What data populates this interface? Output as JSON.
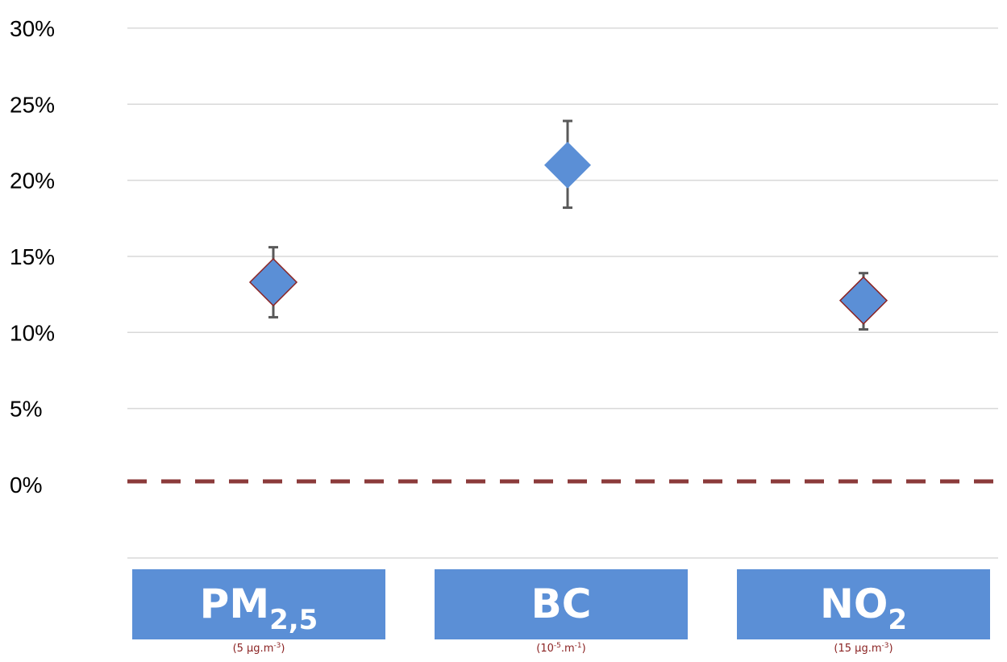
{
  "chart_data": {
    "type": "scatter",
    "y_format": "percent",
    "ylim": [
      0,
      30
    ],
    "y_ticks": [
      {
        "value": 30,
        "label": "30%"
      },
      {
        "value": 25,
        "label": "25%"
      },
      {
        "value": 20,
        "label": "20%"
      },
      {
        "value": 15,
        "label": "15%"
      },
      {
        "value": 10,
        "label": "10%"
      },
      {
        "value": 5,
        "label": "5%"
      },
      {
        "value": 0,
        "label": "0%"
      }
    ],
    "grid": true,
    "reference_line": {
      "value": 0,
      "style": "dashed",
      "color": "#8b3a3a"
    },
    "categories": [
      {
        "name_main": "PM",
        "name_sub": "2,5",
        "unit_main": "(5 µg.m",
        "unit_sup": "-3",
        "unit_end": ")"
      },
      {
        "name_main": "BC",
        "name_sub": "",
        "unit_main": "(10",
        "unit_sup": "-5",
        "unit_end": ".m-1)"
      },
      {
        "name_main": "NO",
        "name_sub": "2",
        "unit_main": "(15 µg.m",
        "unit_sup": "-3",
        "unit_end": ")"
      }
    ],
    "points": [
      {
        "category": "PM2,5",
        "value": 13.3,
        "err_low": 11.0,
        "err_high": 15.6
      },
      {
        "category": "BC",
        "value": 21.0,
        "err_low": 18.2,
        "err_high": 23.9
      },
      {
        "category": "NO2",
        "value": 12.1,
        "err_low": 10.2,
        "err_high": 13.9
      }
    ],
    "colors": {
      "marker_fill": "#5b8fd6",
      "marker_stroke": "#8b2323",
      "error_bar": "#595959",
      "category_box": "#5b8fd6",
      "gridline": "#d9d9d9"
    }
  }
}
